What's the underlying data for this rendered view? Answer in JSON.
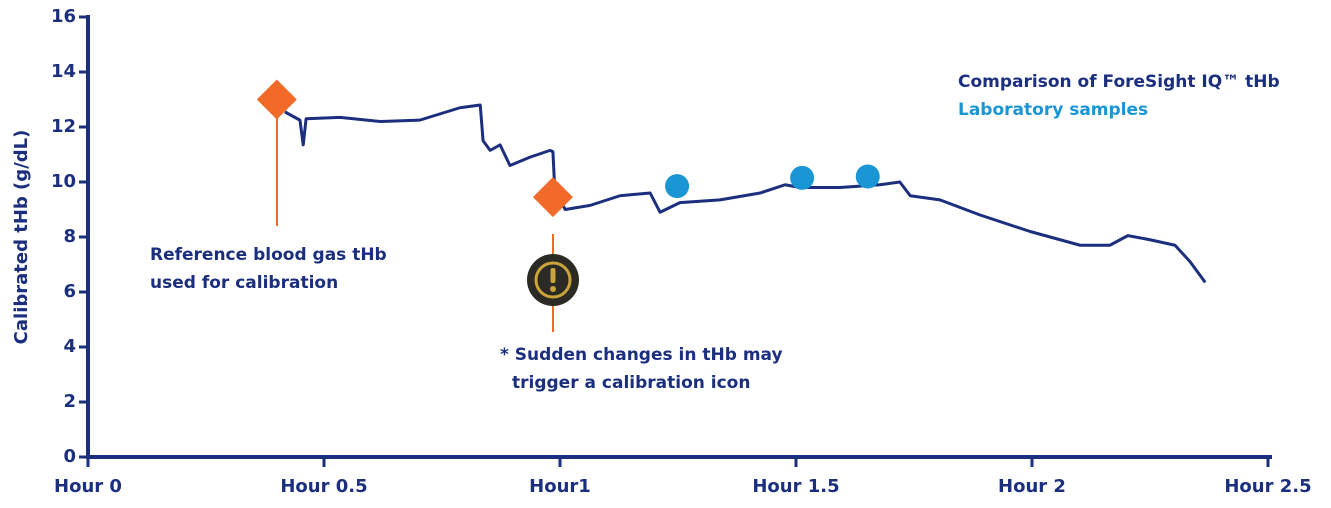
{
  "chart_data": {
    "type": "line",
    "ylabel": "Calibrated tHb (g/dL)",
    "xlim": [
      0,
      2.5
    ],
    "xticks": [
      {
        "value": 0,
        "label": "Hour 0"
      },
      {
        "value": 0.5,
        "label": "Hour 0.5"
      },
      {
        "value": 1,
        "label": "Hour1"
      },
      {
        "value": 1.5,
        "label": "Hour 1.5"
      },
      {
        "value": 2,
        "label": "Hour 2"
      },
      {
        "value": 2.5,
        "label": "Hour 2.5"
      }
    ],
    "ylim": [
      0,
      16
    ],
    "yticks": [
      0,
      2,
      4,
      6,
      8,
      10,
      12,
      14,
      16
    ],
    "series": [
      {
        "name": "Comparison of ForeSight IQ™ tHb",
        "type": "line",
        "color": "#1b2f7e",
        "x": [
          0.417,
          0.449,
          0.456,
          0.462,
          0.534,
          0.619,
          0.703,
          0.788,
          0.831,
          0.837,
          0.852,
          0.873,
          0.894,
          0.936,
          0.979,
          0.985,
          0.989,
          1.011,
          1.064,
          1.127,
          1.191,
          1.212,
          1.254,
          1.339,
          1.424,
          1.477,
          1.508,
          1.593,
          1.678,
          1.72,
          1.742,
          1.805,
          1.89,
          1.996,
          2.102,
          2.165,
          2.203,
          2.25,
          2.303,
          2.335,
          2.367
        ],
        "values": [
          12.55,
          12.25,
          11.35,
          12.3,
          12.35,
          12.2,
          12.25,
          12.7,
          12.8,
          11.5,
          11.15,
          11.35,
          10.6,
          10.9,
          11.15,
          11.1,
          9.7,
          9.0,
          9.15,
          9.5,
          9.6,
          8.9,
          9.25,
          9.35,
          9.6,
          9.9,
          9.8,
          9.8,
          9.9,
          10.0,
          9.5,
          9.35,
          8.8,
          8.2,
          7.7,
          7.7,
          8.05,
          7.9,
          7.7,
          7.1,
          6.35
        ]
      },
      {
        "name": "Laboratory samples",
        "type": "scatter",
        "color": "#1a96d4",
        "x": [
          1.248,
          1.513,
          1.652
        ],
        "values": [
          9.85,
          10.15,
          10.2
        ]
      }
    ],
    "markers": {
      "color": "#f26a2a",
      "x": [
        0.4,
        0.985
      ],
      "values": [
        13.0,
        9.45
      ]
    },
    "annotations": [
      "Reference blood gas tHb",
      "used for calibration",
      "* Sudden changes in tHb may",
      "trigger a calibration icon"
    ]
  }
}
